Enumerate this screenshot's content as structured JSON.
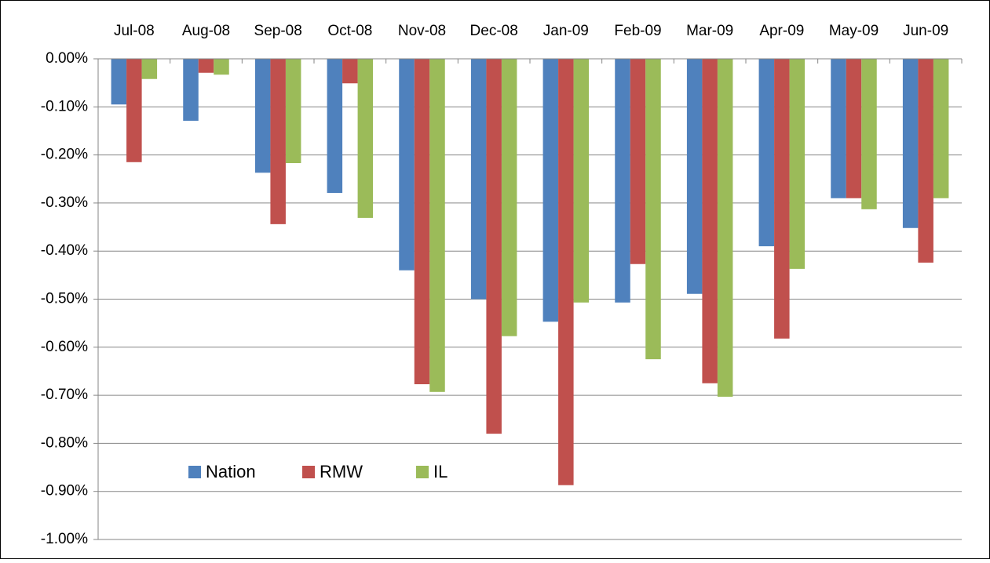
{
  "chart_data": {
    "type": "bar",
    "categories": [
      "Jul-08",
      "Aug-08",
      "Sep-08",
      "Oct-08",
      "Nov-08",
      "Dec-08",
      "Jan-09",
      "Feb-09",
      "Mar-09",
      "Apr-09",
      "May-09",
      "Jun-09"
    ],
    "series": [
      {
        "name": "Nation",
        "color": "#4f81bd",
        "values": [
          -0.095,
          -0.129,
          -0.237,
          -0.279,
          -0.44,
          -0.5,
          -0.547,
          -0.507,
          -0.489,
          -0.39,
          -0.29,
          -0.352
        ]
      },
      {
        "name": "RMW",
        "color": "#c0504d",
        "values": [
          -0.215,
          -0.029,
          -0.344,
          -0.051,
          -0.677,
          -0.78,
          -0.887,
          -0.427,
          -0.675,
          -0.582,
          -0.29,
          -0.424
        ]
      },
      {
        "name": "IL",
        "color": "#9bbb59",
        "values": [
          -0.042,
          -0.033,
          -0.217,
          -0.331,
          -0.693,
          -0.577,
          -0.507,
          -0.625,
          -0.703,
          -0.437,
          -0.313,
          -0.29
        ]
      }
    ],
    "ylim": [
      -1,
      0
    ],
    "yticks": [
      {
        "value": 0,
        "label": "0.00%"
      },
      {
        "value": -0.1,
        "label": "-0.10%"
      },
      {
        "value": -0.2,
        "label": "-0.20%"
      },
      {
        "value": -0.3,
        "label": "-0.30%"
      },
      {
        "value": -0.4,
        "label": "-0.40%"
      },
      {
        "value": -0.5,
        "label": "-0.50%"
      },
      {
        "value": -0.6,
        "label": "-0.60%"
      },
      {
        "value": -0.7,
        "label": "-0.70%"
      },
      {
        "value": -0.8,
        "label": "-0.80%"
      },
      {
        "value": -0.9,
        "label": "-0.90%"
      },
      {
        "value": -1,
        "label": "-1.00%"
      }
    ],
    "grid": true,
    "legend": "lower left"
  }
}
